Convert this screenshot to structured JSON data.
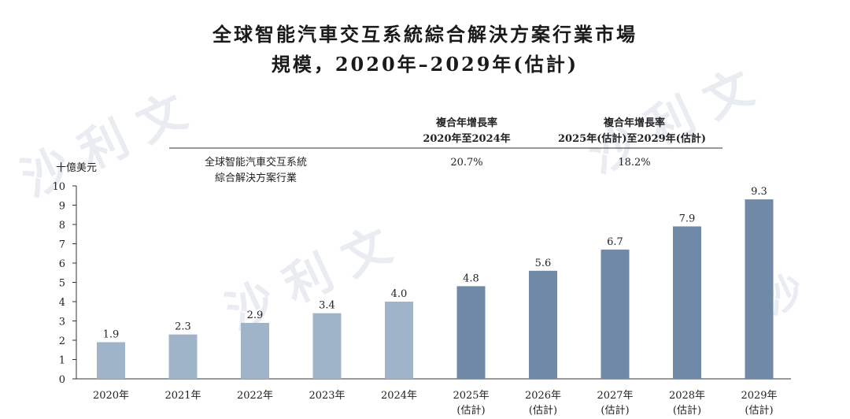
{
  "title_line1": "全球智能汽車交互系統綜合解決方案行業市場",
  "title_line2": "規模，2020年–2029年(估計)",
  "y_unit": "十億美元",
  "series_label_line1": "全球智能汽車交互系統",
  "series_label_line2": "綜合解決方案行業",
  "cagr": [
    {
      "header_line1": "複合年增長率",
      "header_line2": "2020年至2024年",
      "value": "20.7%"
    },
    {
      "header_line1": "複合年增長率",
      "header_line2": "2025年(估計)至2029年(估計)",
      "value": "18.2%"
    }
  ],
  "colors": {
    "historic": "#9fb4c9",
    "forecast": "#6f89a7",
    "axis": "#333333"
  },
  "chart_data": {
    "type": "bar",
    "categories": [
      "2020年",
      "2021年",
      "2022年",
      "2023年",
      "2024年",
      "2025年",
      "2026年",
      "2027年",
      "2028年",
      "2029年"
    ],
    "category_sub": [
      "",
      "",
      "",
      "",
      "",
      "(估計)",
      "(估計)",
      "(估計)",
      "(估計)",
      "(估計)"
    ],
    "values": [
      1.9,
      2.3,
      2.9,
      3.4,
      4.0,
      4.8,
      5.6,
      6.7,
      7.9,
      9.3
    ],
    "value_labels": [
      "1.9",
      "2.3",
      "2.9",
      "3.4",
      "4.0",
      "4.8",
      "5.6",
      "6.7",
      "7.9",
      "9.3"
    ],
    "forecast": [
      false,
      false,
      false,
      false,
      false,
      true,
      true,
      true,
      true,
      true
    ],
    "yticks": [
      0,
      1,
      2,
      3,
      4,
      5,
      6,
      7,
      8,
      9,
      10
    ],
    "ylim": [
      0,
      10
    ],
    "ylabel": "十億美元"
  }
}
